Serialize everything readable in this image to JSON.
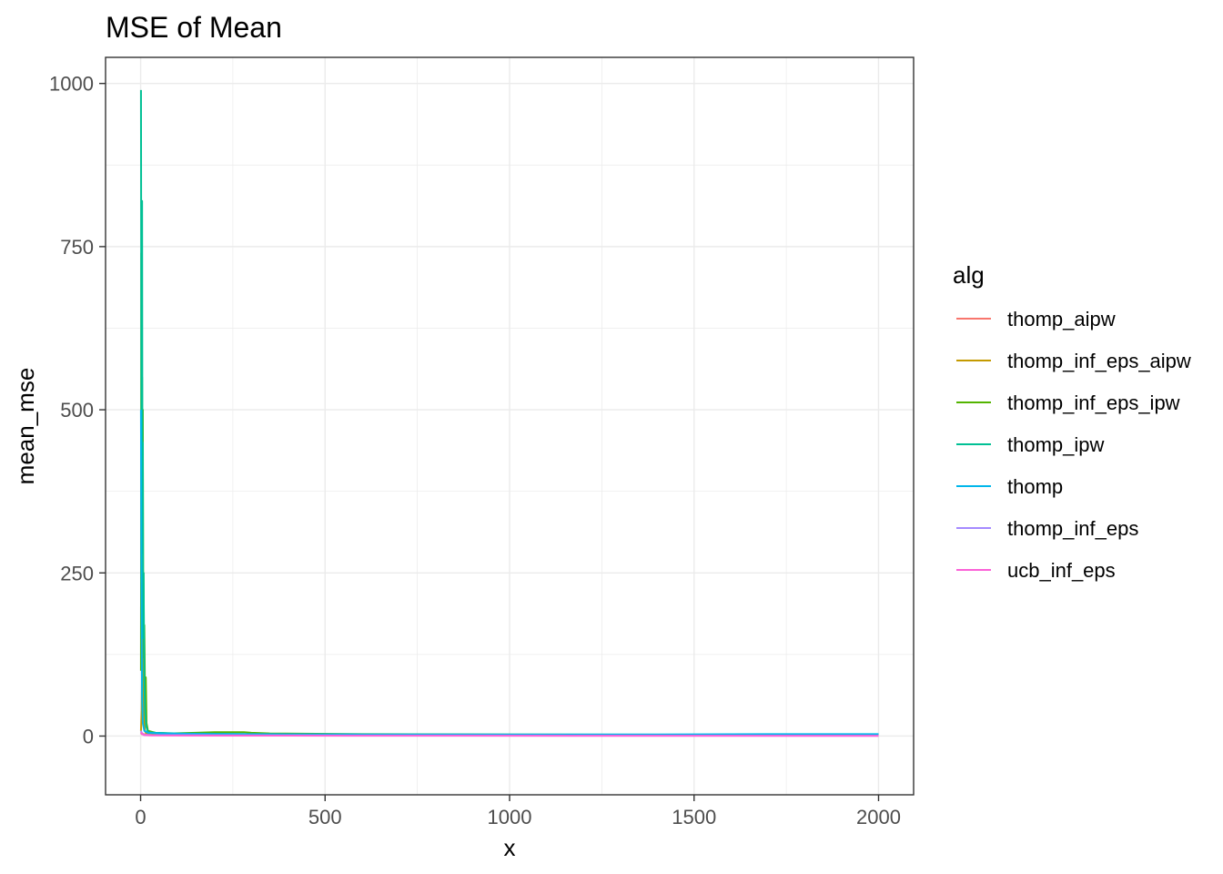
{
  "chart_data": {
    "type": "line",
    "title": "MSE of Mean",
    "xlabel": "x",
    "ylabel": "mean_mse",
    "xlim": [
      -95,
      2095
    ],
    "ylim": [
      -90,
      1040
    ],
    "x_ticks": [
      0,
      500,
      1000,
      1500,
      2000
    ],
    "y_ticks": [
      0,
      250,
      500,
      750,
      1000
    ],
    "grid": true,
    "legend": {
      "title": "alg",
      "position": "right"
    },
    "series": [
      {
        "name": "thomp_aipw",
        "color": "#F8766D",
        "points": [
          [
            1,
            5
          ],
          [
            3,
            3
          ],
          [
            5,
            4
          ],
          [
            8,
            3
          ],
          [
            12,
            2.5
          ],
          [
            20,
            2
          ],
          [
            40,
            1.8
          ],
          [
            100,
            1.5
          ],
          [
            300,
            1.2
          ],
          [
            600,
            1.0
          ],
          [
            1000,
            0.8
          ],
          [
            1500,
            0.7
          ],
          [
            2000,
            0.6
          ]
        ]
      },
      {
        "name": "thomp_inf_eps_aipw",
        "color": "#C49A00",
        "points": [
          [
            1,
            8
          ],
          [
            3,
            40
          ],
          [
            5,
            165
          ],
          [
            7,
            20
          ],
          [
            9,
            90
          ],
          [
            11,
            10
          ],
          [
            14,
            5
          ],
          [
            20,
            4
          ],
          [
            40,
            3
          ],
          [
            100,
            3
          ],
          [
            300,
            2.5
          ],
          [
            600,
            2
          ],
          [
            1000,
            2
          ],
          [
            1500,
            1.8
          ],
          [
            2000,
            1.5
          ]
        ]
      },
      {
        "name": "thomp_inf_eps_ipw",
        "color": "#53B400",
        "points": [
          [
            1,
            100
          ],
          [
            2,
            740
          ],
          [
            3,
            400
          ],
          [
            4,
            550
          ],
          [
            5,
            300
          ],
          [
            6,
            500
          ],
          [
            7,
            200
          ],
          [
            8,
            250
          ],
          [
            9,
            120
          ],
          [
            10,
            170
          ],
          [
            12,
            60
          ],
          [
            14,
            90
          ],
          [
            16,
            20
          ],
          [
            20,
            8
          ],
          [
            40,
            5
          ],
          [
            80,
            4
          ],
          [
            150,
            5
          ],
          [
            200,
            6
          ],
          [
            280,
            6
          ],
          [
            300,
            5
          ],
          [
            350,
            4
          ],
          [
            600,
            3
          ],
          [
            1000,
            2.5
          ],
          [
            1500,
            2
          ],
          [
            2000,
            1.5
          ]
        ]
      },
      {
        "name": "thomp_ipw",
        "color": "#00C094",
        "points": [
          [
            1,
            990
          ],
          [
            2,
            600
          ],
          [
            3,
            360
          ],
          [
            4,
            820
          ],
          [
            5,
            280
          ],
          [
            6,
            450
          ],
          [
            7,
            150
          ],
          [
            8,
            250
          ],
          [
            10,
            90
          ],
          [
            12,
            40
          ],
          [
            15,
            15
          ],
          [
            20,
            6
          ],
          [
            40,
            5
          ],
          [
            100,
            4
          ],
          [
            300,
            3
          ],
          [
            600,
            2.5
          ],
          [
            1000,
            2
          ],
          [
            1500,
            2
          ],
          [
            2000,
            2
          ]
        ]
      },
      {
        "name": "thomp",
        "color": "#00B6EB",
        "points": [
          [
            1,
            500
          ],
          [
            2,
            280
          ],
          [
            3,
            150
          ],
          [
            4,
            60
          ],
          [
            6,
            20
          ],
          [
            10,
            8
          ],
          [
            20,
            5
          ],
          [
            60,
            4
          ],
          [
            200,
            3
          ],
          [
            600,
            2.5
          ],
          [
            1000,
            2.5
          ],
          [
            1400,
            2.5
          ],
          [
            1700,
            3
          ],
          [
            2000,
            3
          ]
        ]
      },
      {
        "name": "thomp_inf_eps",
        "color": "#A58AFF",
        "points": [
          [
            1,
            8
          ],
          [
            3,
            5
          ],
          [
            6,
            3
          ],
          [
            10,
            2
          ],
          [
            30,
            1.5
          ],
          [
            100,
            1.3
          ],
          [
            400,
            1.0
          ],
          [
            800,
            0.8
          ],
          [
            1200,
            0.7
          ],
          [
            1600,
            0.6
          ],
          [
            2000,
            0.5
          ]
        ]
      },
      {
        "name": "ucb_inf_eps",
        "color": "#FB61D7",
        "points": [
          [
            1,
            6
          ],
          [
            3,
            4
          ],
          [
            6,
            2.5
          ],
          [
            10,
            1.5
          ],
          [
            30,
            1.0
          ],
          [
            100,
            0.8
          ],
          [
            400,
            0.6
          ],
          [
            800,
            0.5
          ],
          [
            1200,
            0.4
          ],
          [
            1600,
            0.35
          ],
          [
            2000,
            0.3
          ]
        ]
      }
    ]
  }
}
